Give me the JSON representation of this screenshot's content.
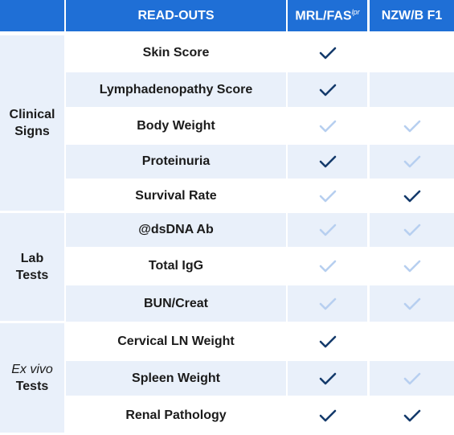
{
  "header": {
    "readouts": "READ-OUTS",
    "columns": [
      {
        "text": "MRL/FAS",
        "sup": "lpr"
      },
      {
        "text": "NZW/B F1"
      }
    ]
  },
  "groups": [
    {
      "lines": [
        {
          "text": "Clinical"
        },
        {
          "text": "Signs"
        }
      ],
      "rows": [
        {
          "label": "Skin Score",
          "checks": [
            "dark",
            null
          ]
        },
        {
          "label": "Lymphadenopathy Score",
          "checks": [
            "dark",
            null
          ]
        },
        {
          "label": "Body Weight",
          "checks": [
            "light",
            "light"
          ]
        },
        {
          "label": "Proteinuria",
          "checks": [
            "dark",
            "light"
          ]
        },
        {
          "label": "Survival Rate",
          "checks": [
            "light",
            "dark"
          ]
        }
      ]
    },
    {
      "lines": [
        {
          "text": "Lab"
        },
        {
          "text": "Tests"
        }
      ],
      "rows": [
        {
          "label": "@dsDNA Ab",
          "checks": [
            "light",
            "light"
          ]
        },
        {
          "label": "Total IgG",
          "checks": [
            "light",
            "light"
          ]
        },
        {
          "label": "BUN/Creat",
          "checks": [
            "light",
            "light"
          ]
        }
      ]
    },
    {
      "lines": [
        {
          "text": "Ex vivo",
          "italic": true
        },
        {
          "text": "Tests"
        }
      ],
      "rows": [
        {
          "label": "Cervical LN Weight",
          "checks": [
            "dark",
            null
          ]
        },
        {
          "label": "Spleen Weight",
          "checks": [
            "dark",
            "light"
          ]
        },
        {
          "label": "Renal Pathology",
          "checks": [
            "dark",
            "dark"
          ]
        }
      ]
    }
  ]
}
